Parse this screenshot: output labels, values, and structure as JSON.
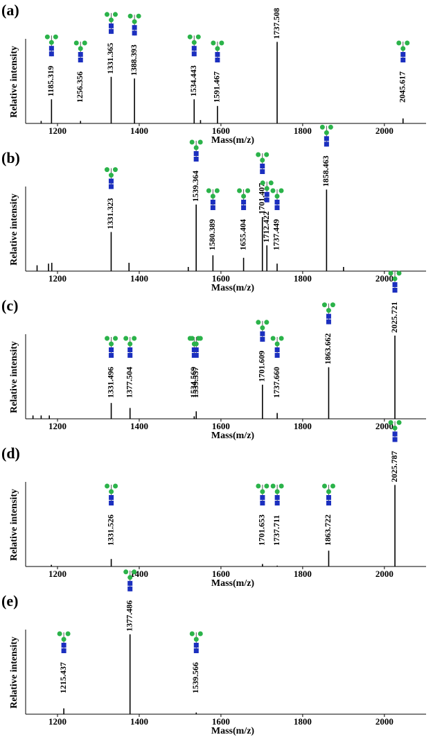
{
  "chart_data": [
    {
      "type": "stem",
      "panel_label": "(a)",
      "xlabel": "Mass(m/z)",
      "ylabel": "Relative intensity",
      "xlim": [
        1122,
        2102
      ],
      "ylim": [
        0,
        100
      ],
      "xticks": [
        1200,
        1400,
        1600,
        1800,
        2000
      ],
      "color": "#000000",
      "x": [
        1185.319,
        1256.356,
        1331.365,
        1388.393,
        1534.443,
        1591.467,
        1737.508,
        2045.617,
        1160,
        1550
      ],
      "values": [
        29,
        3,
        56,
        54,
        29,
        21,
        98,
        6,
        3,
        4
      ],
      "labels": [
        "1185.319",
        "1256.356",
        "1331.365",
        "1388.393",
        "1534.443",
        "1591.467",
        "1737.508",
        "2045.617",
        null,
        null
      ]
    },
    {
      "type": "stem",
      "panel_label": "(b)",
      "xlabel": "Mass(m/z)",
      "ylabel": "Relative intensity",
      "xlim": [
        1122,
        2102
      ],
      "ylim": [
        0,
        100
      ],
      "xticks": [
        1200,
        1400,
        1600,
        1800,
        2000
      ],
      "color": "#000000",
      "x": [
        1331.323,
        1539.364,
        1580.389,
        1655.404,
        1701.407,
        1712.422,
        1737.449,
        1858.463,
        1150,
        1178,
        1186,
        1375,
        1520,
        1900
      ],
      "values": [
        47,
        80,
        19,
        16,
        65,
        31,
        9,
        98,
        7,
        9,
        10,
        10,
        5,
        5
      ],
      "labels": [
        "1331.323",
        "1539.364",
        "1580.389",
        "1655.404",
        "1701.407",
        "1712.422",
        "1737.449",
        "1858.463",
        null,
        null,
        null,
        null,
        null,
        null
      ]
    },
    {
      "type": "stem",
      "panel_label": "(c)",
      "xlabel": "Mass(m/z)",
      "ylabel": "Relative intensity",
      "xlim": [
        1122,
        2102
      ],
      "ylim": [
        0,
        100
      ],
      "xticks": [
        1200,
        1400,
        1600,
        1800,
        2000
      ],
      "color": "#000000",
      "x": [
        1331.496,
        1377.504,
        1534.569,
        1539.557,
        1701.609,
        1737.66,
        1863.662,
        2025.721,
        1140,
        1160,
        1180
      ],
      "values": [
        19,
        13,
        3,
        9,
        41,
        7,
        62,
        100,
        4,
        4,
        4
      ],
      "labels": [
        "1331.496",
        "1377.504",
        "1534.569",
        "1539.557",
        "1701.609",
        "1737.660",
        "1863.662",
        "2025.721",
        null,
        null,
        null
      ]
    },
    {
      "type": "stem",
      "panel_label": "(d)",
      "xlabel": "Mass(m/z)",
      "ylabel": "Relative intensity",
      "xlim": [
        1122,
        2102
      ],
      "ylim": [
        0,
        100
      ],
      "xticks": [
        1200,
        1400,
        1600,
        1800,
        2000
      ],
      "color": "#000000",
      "x": [
        1331.526,
        1701.653,
        1737.711,
        1863.722,
        2025.787,
        1185
      ],
      "values": [
        9,
        3,
        1,
        19,
        98,
        2
      ],
      "labels": [
        "1331.526",
        "1701.653",
        "1737.711",
        "1863.722",
        "2025.787",
        null
      ]
    },
    {
      "type": "stem",
      "panel_label": "(e)",
      "xlabel": "Mass(m/z)",
      "ylabel": "Relative intensity",
      "xlim": [
        1122,
        2102
      ],
      "ylim": [
        0,
        100
      ],
      "xticks": [
        1200,
        1400,
        1600,
        1800,
        2000
      ],
      "color": "#000000",
      "x": [
        1215.437,
        1377.486,
        1539.566
      ],
      "values": [
        7,
        96,
        2
      ],
      "labels": [
        "1215.437",
        "1377.486",
        "1539.566"
      ]
    }
  ]
}
